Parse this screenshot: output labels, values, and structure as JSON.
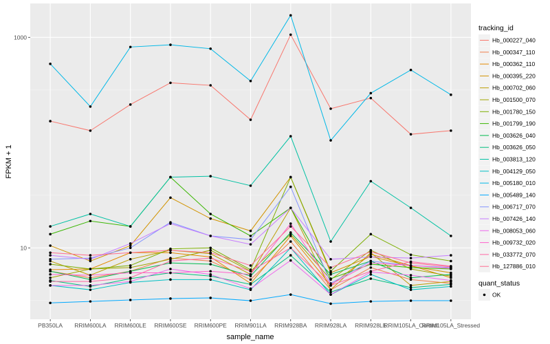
{
  "chart_data": {
    "type": "line",
    "xlabel": "sample_name",
    "ylabel": "FPKM + 1",
    "y_scale": "log",
    "ylim": [
      2.1,
      2100
    ],
    "y_ticks": [
      10,
      1000
    ],
    "y_tick_labels": [
      "10",
      "1000"
    ],
    "categories": [
      "PB350LA",
      "RRIM600LA",
      "RRIM600LE",
      "RRIM600SE",
      "RRIM600PE",
      "RRIM901LA",
      "RRIM928BA",
      "RRIM928LA",
      "RRIM928LE",
      "RRIM105LA_Control",
      "RRIM105LA_Stressed"
    ],
    "legend_title": "tracking_id",
    "legend2_title": "quant_status",
    "legend2_label": "OK",
    "series": [
      {
        "name": "Hb_000227_040",
        "color": "#F8766D",
        "values": [
          160,
          130,
          230,
          370,
          350,
          165,
          1060,
          210,
          265,
          120,
          130
        ]
      },
      {
        "name": "Hb_000347_110",
        "color": "#F07E4B",
        "values": [
          6.0,
          5.2,
          6.0,
          8.0,
          7.5,
          5.0,
          11.5,
          4.0,
          6.5,
          5.0,
          4.6
        ]
      },
      {
        "name": "Hb_000362_110",
        "color": "#E38900",
        "values": [
          6.2,
          6.3,
          9.0,
          9.0,
          8.2,
          4.6,
          13.0,
          4.4,
          8.7,
          6.8,
          5.2
        ]
      },
      {
        "name": "Hb_000395_220",
        "color": "#D19300",
        "values": [
          10.5,
          7.5,
          10.5,
          30.0,
          19.0,
          14.5,
          47.0,
          5.8,
          8.3,
          6.7,
          5.8
        ]
      },
      {
        "name": "Hb_000702_060",
        "color": "#BB9D00",
        "values": [
          7.5,
          5.5,
          7.8,
          9.5,
          8.8,
          5.6,
          24.0,
          4.0,
          9.0,
          4.4,
          4.8
        ]
      },
      {
        "name": "Hb_001500_070",
        "color": "#A0A500",
        "values": [
          5.2,
          6.3,
          6.5,
          7.8,
          9.5,
          6.0,
          13.5,
          5.0,
          9.5,
          6.3,
          5.4
        ]
      },
      {
        "name": "Hb_001780_150",
        "color": "#7CAE00",
        "values": [
          7.0,
          6.3,
          6.8,
          9.8,
          10.0,
          6.2,
          47.0,
          6.0,
          13.5,
          8.6,
          7.5
        ]
      },
      {
        "name": "Hb_001799_190",
        "color": "#39B600",
        "values": [
          13.5,
          18.0,
          16.0,
          47.0,
          21.0,
          13.0,
          24.0,
          5.1,
          7.0,
          6.5,
          6.3
        ]
      },
      {
        "name": "Hb_003626_040",
        "color": "#00BB4E",
        "values": [
          6.0,
          5.0,
          6.0,
          7.2,
          7.0,
          5.4,
          14.0,
          5.6,
          7.5,
          5.2,
          5.6
        ]
      },
      {
        "name": "Hb_003626_050",
        "color": "#00BF7D",
        "values": [
          4.9,
          4.3,
          5.1,
          5.8,
          5.4,
          4.5,
          8.5,
          3.8,
          5.1,
          4.2,
          4.5
        ]
      },
      {
        "name": "Hb_003813_120",
        "color": "#00C1A3",
        "values": [
          16.0,
          21.0,
          16.0,
          47.0,
          48.0,
          39.0,
          115.0,
          11.5,
          43.0,
          24.0,
          13.0
        ]
      },
      {
        "name": "Hb_004129_050",
        "color": "#00BFC4",
        "values": [
          4.4,
          4.0,
          4.7,
          5.0,
          5.0,
          4.0,
          10.0,
          3.6,
          5.6,
          4.0,
          4.3
        ]
      },
      {
        "name": "Hb_005180_010",
        "color": "#00B8E7",
        "values": [
          560,
          220,
          810,
          850,
          780,
          385,
          1620,
          105,
          295,
          490,
          285
        ]
      },
      {
        "name": "Hb_005489_140",
        "color": "#00A9FF",
        "values": [
          3.0,
          3.1,
          3.2,
          3.3,
          3.35,
          3.15,
          3.6,
          2.95,
          3.1,
          3.15,
          3.15
        ]
      },
      {
        "name": "Hb_006717_070",
        "color": "#8494FF",
        "values": [
          7.8,
          8.0,
          10.0,
          17.5,
          13.0,
          12.0,
          38.0,
          4.6,
          7.5,
          6.8,
          6.5
        ]
      },
      {
        "name": "Hb_007426_140",
        "color": "#C77CFF",
        "values": [
          8.5,
          7.8,
          11.0,
          17.0,
          13.0,
          10.8,
          24.0,
          7.8,
          8.2,
          8.0,
          8.5
        ]
      },
      {
        "name": "Hb_008053_060",
        "color": "#ED68ED",
        "values": [
          4.4,
          4.4,
          4.8,
          6.3,
          5.6,
          4.1,
          7.6,
          3.6,
          5.9,
          5.5,
          4.9
        ]
      },
      {
        "name": "Hb_009732_020",
        "color": "#FF61CC",
        "values": [
          5.6,
          5.5,
          5.8,
          5.8,
          6.0,
          5.6,
          17.0,
          4.5,
          7.2,
          6.8,
          6.4
        ]
      },
      {
        "name": "Hb_033772_070",
        "color": "#FF67A4",
        "values": [
          4.8,
          4.8,
          5.2,
          7.5,
          8.0,
          6.0,
          10.0,
          4.4,
          6.0,
          7.4,
          6.7
        ]
      },
      {
        "name": "Hb_127886_010",
        "color": "#FF6C91",
        "values": [
          9.0,
          8.5,
          9.0,
          9.5,
          9.0,
          6.8,
          16.0,
          6.5,
          9.2,
          7.2,
          6.6
        ]
      }
    ]
  }
}
